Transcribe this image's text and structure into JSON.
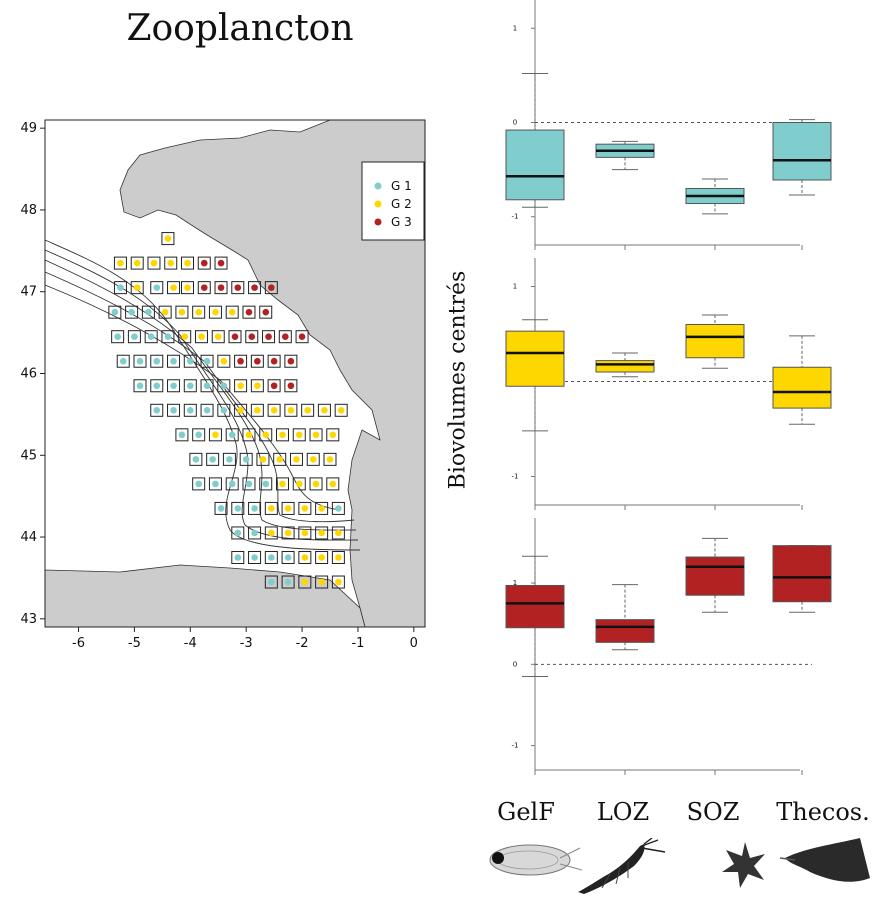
{
  "page_title": "Zooplancton",
  "colors": {
    "g1": "#7fcdcd",
    "g2": "#ffd700",
    "g3": "#b22222",
    "land": "#cccccc"
  },
  "chart_data": [
    {
      "type": "scatter",
      "title": "",
      "xlabel": "",
      "ylabel": "",
      "xlim": [
        -6.6,
        0.2
      ],
      "ylim": [
        42.9,
        49.1
      ],
      "x_ticks": [
        "-6",
        "-5",
        "-4",
        "-3",
        "-2",
        "-1",
        "0"
      ],
      "y_ticks": [
        "43",
        "44",
        "45",
        "46",
        "47",
        "48",
        "49"
      ],
      "legend": {
        "placement": "top-right",
        "entries": [
          "G 1",
          "G 2",
          "G 3"
        ]
      },
      "stations": [
        {
          "lon": -4.4,
          "lat": 47.65,
          "g": 2
        },
        {
          "lon": -5.25,
          "lat": 47.35,
          "g": 2
        },
        {
          "lon": -4.95,
          "lat": 47.35,
          "g": 2
        },
        {
          "lon": -4.65,
          "lat": 47.35,
          "g": 2
        },
        {
          "lon": -4.35,
          "lat": 47.35,
          "g": 2
        },
        {
          "lon": -4.05,
          "lat": 47.35,
          "g": 2
        },
        {
          "lon": -3.75,
          "lat": 47.35,
          "g": 3
        },
        {
          "lon": -3.45,
          "lat": 47.35,
          "g": 3
        },
        {
          "lon": -5.25,
          "lat": 47.05,
          "g": 1
        },
        {
          "lon": -4.95,
          "lat": 47.05,
          "g": 2
        },
        {
          "lon": -4.6,
          "lat": 47.05,
          "g": 1
        },
        {
          "lon": -4.3,
          "lat": 47.05,
          "g": 2
        },
        {
          "lon": -4.05,
          "lat": 47.05,
          "g": 2
        },
        {
          "lon": -3.75,
          "lat": 47.05,
          "g": 3
        },
        {
          "lon": -3.45,
          "lat": 47.05,
          "g": 3
        },
        {
          "lon": -3.15,
          "lat": 47.05,
          "g": 3
        },
        {
          "lon": -2.85,
          "lat": 47.05,
          "g": 3
        },
        {
          "lon": -2.55,
          "lat": 47.05,
          "g": 3
        },
        {
          "lon": -5.35,
          "lat": 46.75,
          "g": 1
        },
        {
          "lon": -5.05,
          "lat": 46.75,
          "g": 1
        },
        {
          "lon": -4.75,
          "lat": 46.75,
          "g": 1
        },
        {
          "lon": -4.45,
          "lat": 46.75,
          "g": 2
        },
        {
          "lon": -4.15,
          "lat": 46.75,
          "g": 2
        },
        {
          "lon": -3.85,
          "lat": 46.75,
          "g": 2
        },
        {
          "lon": -3.55,
          "lat": 46.75,
          "g": 2
        },
        {
          "lon": -3.25,
          "lat": 46.75,
          "g": 2
        },
        {
          "lon": -2.95,
          "lat": 46.75,
          "g": 3
        },
        {
          "lon": -2.65,
          "lat": 46.75,
          "g": 3
        },
        {
          "lon": -5.3,
          "lat": 46.45,
          "g": 1
        },
        {
          "lon": -5.0,
          "lat": 46.45,
          "g": 1
        },
        {
          "lon": -4.7,
          "lat": 46.45,
          "g": 1
        },
        {
          "lon": -4.4,
          "lat": 46.45,
          "g": 1
        },
        {
          "lon": -4.1,
          "lat": 46.45,
          "g": 2
        },
        {
          "lon": -3.8,
          "lat": 46.45,
          "g": 2
        },
        {
          "lon": -3.5,
          "lat": 46.45,
          "g": 2
        },
        {
          "lon": -3.2,
          "lat": 46.45,
          "g": 3
        },
        {
          "lon": -2.9,
          "lat": 46.45,
          "g": 3
        },
        {
          "lon": -2.6,
          "lat": 46.45,
          "g": 3
        },
        {
          "lon": -2.3,
          "lat": 46.45,
          "g": 3
        },
        {
          "lon": -2.0,
          "lat": 46.45,
          "g": 3
        },
        {
          "lon": -5.2,
          "lat": 46.15,
          "g": 1
        },
        {
          "lon": -4.9,
          "lat": 46.15,
          "g": 1
        },
        {
          "lon": -4.6,
          "lat": 46.15,
          "g": 1
        },
        {
          "lon": -4.3,
          "lat": 46.15,
          "g": 1
        },
        {
          "lon": -4.0,
          "lat": 46.15,
          "g": 1
        },
        {
          "lon": -3.7,
          "lat": 46.15,
          "g": 1
        },
        {
          "lon": -3.4,
          "lat": 46.15,
          "g": 2
        },
        {
          "lon": -3.1,
          "lat": 46.15,
          "g": 3
        },
        {
          "lon": -2.8,
          "lat": 46.15,
          "g": 3
        },
        {
          "lon": -2.5,
          "lat": 46.15,
          "g": 3
        },
        {
          "lon": -2.2,
          "lat": 46.15,
          "g": 3
        },
        {
          "lon": -4.9,
          "lat": 45.85,
          "g": 1
        },
        {
          "lon": -4.6,
          "lat": 45.85,
          "g": 1
        },
        {
          "lon": -4.3,
          "lat": 45.85,
          "g": 1
        },
        {
          "lon": -4.0,
          "lat": 45.85,
          "g": 1
        },
        {
          "lon": -3.7,
          "lat": 45.85,
          "g": 1
        },
        {
          "lon": -3.4,
          "lat": 45.85,
          "g": 1
        },
        {
          "lon": -3.1,
          "lat": 45.85,
          "g": 2
        },
        {
          "lon": -2.8,
          "lat": 45.85,
          "g": 2
        },
        {
          "lon": -2.5,
          "lat": 45.85,
          "g": 3
        },
        {
          "lon": -2.2,
          "lat": 45.85,
          "g": 3
        },
        {
          "lon": -4.6,
          "lat": 45.55,
          "g": 1
        },
        {
          "lon": -4.3,
          "lat": 45.55,
          "g": 1
        },
        {
          "lon": -4.0,
          "lat": 45.55,
          "g": 1
        },
        {
          "lon": -3.7,
          "lat": 45.55,
          "g": 1
        },
        {
          "lon": -3.4,
          "lat": 45.55,
          "g": 1
        },
        {
          "lon": -3.1,
          "lat": 45.55,
          "g": 2
        },
        {
          "lon": -2.8,
          "lat": 45.55,
          "g": 2
        },
        {
          "lon": -2.5,
          "lat": 45.55,
          "g": 2
        },
        {
          "lon": -2.2,
          "lat": 45.55,
          "g": 2
        },
        {
          "lon": -1.9,
          "lat": 45.55,
          "g": 2
        },
        {
          "lon": -1.6,
          "lat": 45.55,
          "g": 2
        },
        {
          "lon": -1.3,
          "lat": 45.55,
          "g": 2
        },
        {
          "lon": -4.15,
          "lat": 45.25,
          "g": 1
        },
        {
          "lon": -3.85,
          "lat": 45.25,
          "g": 1
        },
        {
          "lon": -3.55,
          "lat": 45.25,
          "g": 2
        },
        {
          "lon": -3.25,
          "lat": 45.25,
          "g": 1
        },
        {
          "lon": -2.95,
          "lat": 45.25,
          "g": 2
        },
        {
          "lon": -2.65,
          "lat": 45.25,
          "g": 2
        },
        {
          "lon": -2.35,
          "lat": 45.25,
          "g": 2
        },
        {
          "lon": -2.05,
          "lat": 45.25,
          "g": 2
        },
        {
          "lon": -1.75,
          "lat": 45.25,
          "g": 2
        },
        {
          "lon": -1.45,
          "lat": 45.25,
          "g": 2
        },
        {
          "lon": -3.9,
          "lat": 44.95,
          "g": 1
        },
        {
          "lon": -3.6,
          "lat": 44.95,
          "g": 1
        },
        {
          "lon": -3.3,
          "lat": 44.95,
          "g": 1
        },
        {
          "lon": -3.0,
          "lat": 44.95,
          "g": 1
        },
        {
          "lon": -2.7,
          "lat": 44.95,
          "g": 2
        },
        {
          "lon": -2.4,
          "lat": 44.95,
          "g": 2
        },
        {
          "lon": -2.1,
          "lat": 44.95,
          "g": 2
        },
        {
          "lon": -1.8,
          "lat": 44.95,
          "g": 2
        },
        {
          "lon": -1.5,
          "lat": 44.95,
          "g": 2
        },
        {
          "lon": -3.85,
          "lat": 44.65,
          "g": 1
        },
        {
          "lon": -3.55,
          "lat": 44.65,
          "g": 1
        },
        {
          "lon": -3.25,
          "lat": 44.65,
          "g": 1
        },
        {
          "lon": -2.95,
          "lat": 44.65,
          "g": 1
        },
        {
          "lon": -2.65,
          "lat": 44.65,
          "g": 1
        },
        {
          "lon": -2.35,
          "lat": 44.65,
          "g": 2
        },
        {
          "lon": -2.05,
          "lat": 44.65,
          "g": 2
        },
        {
          "lon": -1.75,
          "lat": 44.65,
          "g": 2
        },
        {
          "lon": -1.45,
          "lat": 44.65,
          "g": 2
        },
        {
          "lon": -3.45,
          "lat": 44.35,
          "g": 1
        },
        {
          "lon": -3.15,
          "lat": 44.35,
          "g": 1
        },
        {
          "lon": -2.85,
          "lat": 44.35,
          "g": 1
        },
        {
          "lon": -2.55,
          "lat": 44.35,
          "g": 2
        },
        {
          "lon": -2.25,
          "lat": 44.35,
          "g": 2
        },
        {
          "lon": -1.95,
          "lat": 44.35,
          "g": 2
        },
        {
          "lon": -1.65,
          "lat": 44.35,
          "g": 2
        },
        {
          "lon": -1.35,
          "lat": 44.35,
          "g": 1
        },
        {
          "lon": -3.15,
          "lat": 44.05,
          "g": 1
        },
        {
          "lon": -2.85,
          "lat": 44.05,
          "g": 1
        },
        {
          "lon": -2.55,
          "lat": 44.05,
          "g": 2
        },
        {
          "lon": -2.25,
          "lat": 44.05,
          "g": 2
        },
        {
          "lon": -1.95,
          "lat": 44.05,
          "g": 2
        },
        {
          "lon": -1.65,
          "lat": 44.05,
          "g": 2
        },
        {
          "lon": -1.35,
          "lat": 44.05,
          "g": 2
        },
        {
          "lon": -3.15,
          "lat": 43.75,
          "g": 1
        },
        {
          "lon": -2.85,
          "lat": 43.75,
          "g": 1
        },
        {
          "lon": -2.55,
          "lat": 43.75,
          "g": 1
        },
        {
          "lon": -2.25,
          "lat": 43.75,
          "g": 1
        },
        {
          "lon": -1.95,
          "lat": 43.75,
          "g": 2
        },
        {
          "lon": -1.65,
          "lat": 43.75,
          "g": 2
        },
        {
          "lon": -1.35,
          "lat": 43.75,
          "g": 2
        },
        {
          "lon": -2.55,
          "lat": 43.45,
          "g": 1
        },
        {
          "lon": -2.25,
          "lat": 43.45,
          "g": 1
        },
        {
          "lon": -1.95,
          "lat": 43.45,
          "g": 2
        },
        {
          "lon": -1.65,
          "lat": 43.45,
          "g": 2
        },
        {
          "lon": -1.35,
          "lat": 43.45,
          "g": 2
        }
      ]
    },
    {
      "type": "box",
      "title": "",
      "xlabel": "",
      "ylabel": "Biovolumes centrés",
      "categories": [
        "GelF",
        "LOZ",
        "SOZ",
        "Thecos."
      ],
      "y_ticks": [
        -1,
        0,
        1
      ],
      "panels": [
        {
          "name": "",
          "color_key": "g1",
          "ylim": [
            -1.3,
            1.3
          ],
          "boxes": [
            {
              "whisker_low": -0.9,
              "q1": -0.82,
              "median": -0.57,
              "q3": -0.08,
              "whisker_high": 0.52
            },
            {
              "whisker_low": -0.5,
              "q1": -0.37,
              "median": -0.3,
              "q3": -0.23,
              "whisker_high": -0.2
            },
            {
              "whisker_low": -0.97,
              "q1": -0.86,
              "median": -0.78,
              "q3": -0.7,
              "whisker_high": -0.6
            },
            {
              "whisker_low": -0.77,
              "q1": -0.61,
              "median": -0.4,
              "q3": 0.0,
              "whisker_high": 0.03
            }
          ]
        },
        {
          "name": "",
          "color_key": "g2",
          "ylim": [
            -1.3,
            1.3
          ],
          "boxes": [
            {
              "whisker_low": -0.52,
              "q1": -0.05,
              "median": 0.3,
              "q3": 0.53,
              "whisker_high": 0.65
            },
            {
              "whisker_low": 0.05,
              "q1": 0.1,
              "median": 0.18,
              "q3": 0.22,
              "whisker_high": 0.3
            },
            {
              "whisker_low": 0.14,
              "q1": 0.25,
              "median": 0.47,
              "q3": 0.6,
              "whisker_high": 0.7
            },
            {
              "whisker_low": -0.45,
              "q1": -0.28,
              "median": -0.11,
              "q3": 0.15,
              "whisker_high": 0.48
            }
          ]
        },
        {
          "name": "",
          "color_key": "g3",
          "ylim": [
            -1.3,
            1.8
          ],
          "boxes": [
            {
              "whisker_low": -0.15,
              "q1": 0.45,
              "median": 0.75,
              "q3": 0.97,
              "whisker_high": 1.33
            },
            {
              "whisker_low": 0.18,
              "q1": 0.27,
              "median": 0.46,
              "q3": 0.55,
              "whisker_high": 0.98
            },
            {
              "whisker_low": 0.64,
              "q1": 0.85,
              "median": 1.2,
              "q3": 1.32,
              "whisker_high": 1.55
            },
            {
              "whisker_low": 0.64,
              "q1": 0.77,
              "median": 1.07,
              "q3": 1.46,
              "whisker_high": 1.46
            }
          ]
        }
      ]
    }
  ]
}
